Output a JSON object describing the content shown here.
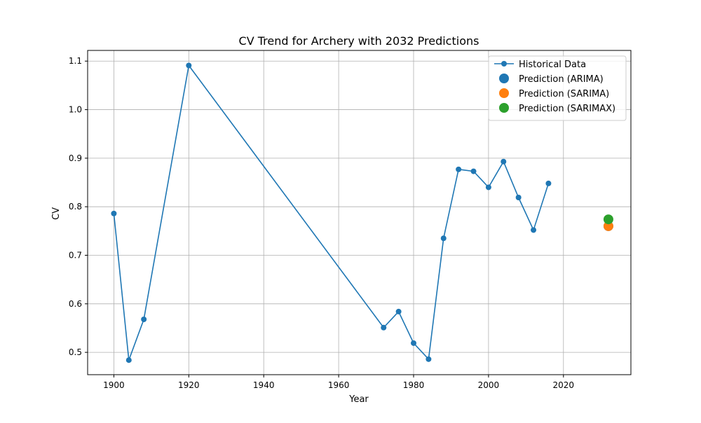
{
  "chart_data": {
    "type": "line",
    "title": "CV Trend for Archery with 2032 Predictions",
    "xlabel": "Year",
    "ylabel": "CV",
    "xlim": [
      1893,
      2038
    ],
    "ylim": [
      0.454,
      1.122
    ],
    "xticks": [
      1900,
      1920,
      1940,
      1960,
      1980,
      2000,
      2020
    ],
    "yticks": [
      0.5,
      0.6,
      0.7,
      0.8,
      0.9,
      1.0,
      1.1
    ],
    "ytick_labels": [
      "0.5",
      "0.6",
      "0.7",
      "0.8",
      "0.9",
      "1.0",
      "1.1"
    ],
    "grid": true,
    "legend_position": "top-right",
    "series": [
      {
        "name": "Historical Data",
        "kind": "line-marker",
        "color": "#1f77b4",
        "x": [
          1900,
          1904,
          1908,
          1920,
          1972,
          1976,
          1980,
          1984,
          1988,
          1992,
          1996,
          2000,
          2004,
          2008,
          2012,
          2016
        ],
        "y": [
          0.786,
          0.484,
          0.568,
          1.091,
          0.551,
          0.584,
          0.519,
          0.486,
          0.735,
          0.877,
          0.873,
          0.84,
          0.893,
          0.819,
          0.752,
          0.848
        ]
      },
      {
        "name": "Prediction (ARIMA)",
        "kind": "point",
        "color": "#1f77b4",
        "x": [
          2032
        ],
        "y": [
          0.76
        ]
      },
      {
        "name": "Prediction (SARIMA)",
        "kind": "point",
        "color": "#ff7f0e",
        "x": [
          2032
        ],
        "y": [
          0.76
        ]
      },
      {
        "name": "Prediction (SARIMAX)",
        "kind": "point",
        "color": "#2ca02c",
        "x": [
          2032
        ],
        "y": [
          0.774
        ]
      }
    ]
  }
}
